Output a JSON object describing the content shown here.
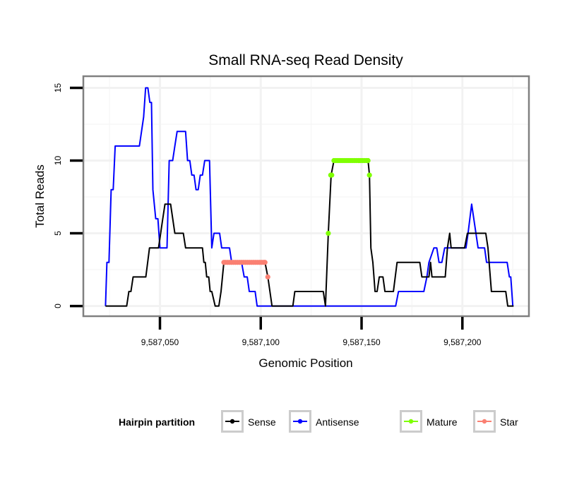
{
  "chart_data": {
    "type": "line",
    "title": "Small RNA-seq Read Density",
    "xlabel": "Genomic Position",
    "ylabel": "Total Reads",
    "xlim": [
      9587012,
      9587233
    ],
    "ylim": [
      -0.7,
      15.8
    ],
    "x_ticks": [
      {
        "value": 9587050,
        "label": "9,587,050"
      },
      {
        "value": 9587100,
        "label": "9,587,100"
      },
      {
        "value": 9587150,
        "label": "9,587,150"
      },
      {
        "value": 9587200,
        "label": "9,587,200"
      }
    ],
    "y_ticks": [
      {
        "value": 0,
        "label": "0"
      },
      {
        "value": 5,
        "label": "5"
      },
      {
        "value": 10,
        "label": "10"
      },
      {
        "value": 15,
        "label": "15"
      }
    ],
    "x_minor_grid": [
      9587025,
      9587075,
      9587125,
      9587175,
      9587225
    ],
    "y_minor_grid": [
      2.5,
      7.5,
      12.5
    ],
    "grid": true,
    "legend": {
      "title": "Hairpin partition",
      "position": "bottom",
      "entries": [
        {
          "name": "Sense",
          "color": "#000000"
        },
        {
          "name": "Antisense",
          "color": "#0000ff"
        },
        {
          "name": "Mature",
          "color": "#7fff00"
        },
        {
          "name": "Star",
          "color": "#fa8072"
        }
      ]
    },
    "series": [
      {
        "name": "Antisense",
        "kind": "line",
        "color": "#0000ff",
        "points": [
          [
            9587023,
            0
          ],
          [
            9587023.7,
            3
          ],
          [
            9587024.7,
            3
          ],
          [
            9587025.8,
            8
          ],
          [
            9587026.8,
            8
          ],
          [
            9587027.8,
            11
          ],
          [
            9587039.8,
            11
          ],
          [
            9587041.9,
            13
          ],
          [
            9587042.9,
            15
          ],
          [
            9587044,
            15
          ],
          [
            9587045,
            14
          ],
          [
            9587045.8,
            14
          ],
          [
            9587046.5,
            8
          ],
          [
            9587047.9,
            6
          ],
          [
            9587049,
            6
          ],
          [
            9587050,
            4
          ],
          [
            9587053.5,
            4
          ],
          [
            9587054.6,
            10
          ],
          [
            9587056.3,
            10
          ],
          [
            9587057.4,
            11
          ],
          [
            9587058.5,
            12
          ],
          [
            9587062.7,
            12
          ],
          [
            9587063.7,
            10
          ],
          [
            9587064.8,
            10
          ],
          [
            9587065.8,
            9
          ],
          [
            9587066.9,
            9
          ],
          [
            9587067.9,
            8
          ],
          [
            9587069,
            8
          ],
          [
            9587070,
            9
          ],
          [
            9587071.1,
            9
          ],
          [
            9587072.2,
            10
          ],
          [
            9587074.6,
            10
          ],
          [
            9587075.7,
            4
          ],
          [
            9587076.8,
            5
          ],
          [
            9587079.6,
            5
          ],
          [
            9587080.6,
            4
          ],
          [
            9587084.5,
            4
          ],
          [
            9587085.6,
            3
          ],
          [
            9587090.5,
            3
          ],
          [
            9587091.8,
            2
          ],
          [
            9587093.3,
            2
          ],
          [
            9587094.3,
            1
          ],
          [
            9587097.2,
            1
          ],
          [
            9587098.2,
            0
          ],
          [
            9587166.9,
            0
          ],
          [
            9587168.3,
            1
          ],
          [
            9587180.9,
            1
          ],
          [
            9587182.4,
            2
          ],
          [
            9587183.4,
            3
          ],
          [
            9587185.9,
            4
          ],
          [
            9587187.3,
            4
          ],
          [
            9587188.4,
            3
          ],
          [
            9587189.8,
            3
          ],
          [
            9587191.2,
            4
          ],
          [
            9587201.8,
            4
          ],
          [
            9587202.8,
            5
          ],
          [
            9587204.6,
            7
          ],
          [
            9587207.8,
            4
          ],
          [
            9587211,
            4
          ],
          [
            9587212,
            3
          ],
          [
            9587222.2,
            3
          ],
          [
            9587223.3,
            2
          ],
          [
            9587224,
            2
          ],
          [
            9587225,
            0
          ]
        ]
      },
      {
        "name": "Sense",
        "kind": "line",
        "color": "#000000",
        "points": [
          [
            9587023,
            0
          ],
          [
            9587033.5,
            0
          ],
          [
            9587034.6,
            1
          ],
          [
            9587035.6,
            1
          ],
          [
            9587036.7,
            2
          ],
          [
            9587043,
            2
          ],
          [
            9587044.8,
            4
          ],
          [
            9587049.3,
            4
          ],
          [
            9587051.4,
            6
          ],
          [
            9587052.5,
            7
          ],
          [
            9587055.3,
            7
          ],
          [
            9587057.4,
            5
          ],
          [
            9587061.6,
            5
          ],
          [
            9587062.7,
            4
          ],
          [
            9587071.1,
            4
          ],
          [
            9587071.8,
            3
          ],
          [
            9587072.5,
            3
          ],
          [
            9587073.2,
            2
          ],
          [
            9587074.2,
            2
          ],
          [
            9587074.9,
            1
          ],
          [
            9587075.7,
            1
          ],
          [
            9587077.4,
            0
          ],
          [
            9587079.2,
            0
          ],
          [
            9587080.3,
            1
          ],
          [
            9587081.7,
            3
          ],
          [
            9587102.1,
            3
          ],
          [
            9587103.5,
            2
          ],
          [
            9587105.6,
            0
          ],
          [
            9587115.9,
            0
          ],
          [
            9587116.9,
            1
          ],
          [
            9587131,
            1
          ],
          [
            9587132.1,
            0
          ],
          [
            9587133.5,
            5
          ],
          [
            9587134.9,
            9
          ],
          [
            9587136.3,
            10
          ],
          [
            9587153.2,
            10
          ],
          [
            9587153.9,
            9
          ],
          [
            9587154.6,
            4
          ],
          [
            9587155.6,
            3
          ],
          [
            9587156.7,
            1
          ],
          [
            9587157.7,
            1
          ],
          [
            9587158.8,
            2
          ],
          [
            9587160.6,
            2
          ],
          [
            9587161.6,
            1
          ],
          [
            9587165.8,
            1
          ],
          [
            9587167.6,
            3
          ],
          [
            9587178.9,
            3
          ],
          [
            9587179.9,
            2
          ],
          [
            9587183.4,
            2
          ],
          [
            9587184.2,
            3
          ],
          [
            9587184.9,
            2
          ],
          [
            9587191.5,
            2
          ],
          [
            9587192.6,
            4
          ],
          [
            9587193.7,
            5
          ],
          [
            9587194.4,
            4
          ],
          [
            9587201.1,
            4
          ],
          [
            9587202.5,
            5
          ],
          [
            9587211.6,
            5
          ],
          [
            9587212.7,
            4
          ],
          [
            9587214.4,
            1
          ],
          [
            9587221.5,
            1
          ],
          [
            9587222.5,
            0
          ],
          [
            9587225.4,
            0
          ]
        ]
      },
      {
        "name": "Star",
        "kind": "points",
        "color": "#fa8072",
        "points": [
          [
            9587081.7,
            3
          ],
          [
            9587082.5,
            3
          ],
          [
            9587083.5,
            3
          ],
          [
            9587084.5,
            3
          ],
          [
            9587085.5,
            3
          ],
          [
            9587086.5,
            3
          ],
          [
            9587087.5,
            3
          ],
          [
            9587088.5,
            3
          ],
          [
            9587089.5,
            3
          ],
          [
            9587090.5,
            3
          ],
          [
            9587091.5,
            3
          ],
          [
            9587092.5,
            3
          ],
          [
            9587093.5,
            3
          ],
          [
            9587094.5,
            3
          ],
          [
            9587095.5,
            3
          ],
          [
            9587096.5,
            3
          ],
          [
            9587097.5,
            3
          ],
          [
            9587098.5,
            3
          ],
          [
            9587099.5,
            3
          ],
          [
            9587100.5,
            3
          ],
          [
            9587101.5,
            3
          ],
          [
            9587102.1,
            3
          ],
          [
            9587103.5,
            2
          ]
        ]
      },
      {
        "name": "Mature",
        "kind": "points",
        "color": "#7fff00",
        "points": [
          [
            9587133.5,
            5
          ],
          [
            9587134.7,
            9
          ],
          [
            9587135.2,
            9
          ],
          [
            9587136.3,
            10
          ],
          [
            9587137.3,
            10
          ],
          [
            9587138.3,
            10
          ],
          [
            9587139.3,
            10
          ],
          [
            9587140.3,
            10
          ],
          [
            9587141.3,
            10
          ],
          [
            9587142.3,
            10
          ],
          [
            9587143.3,
            10
          ],
          [
            9587144.3,
            10
          ],
          [
            9587145.3,
            10
          ],
          [
            9587146.3,
            10
          ],
          [
            9587147.3,
            10
          ],
          [
            9587148.3,
            10
          ],
          [
            9587149.3,
            10
          ],
          [
            9587150.3,
            10
          ],
          [
            9587151.3,
            10
          ],
          [
            9587152.3,
            10
          ],
          [
            9587153.2,
            10
          ],
          [
            9587153.9,
            9
          ]
        ]
      }
    ]
  }
}
